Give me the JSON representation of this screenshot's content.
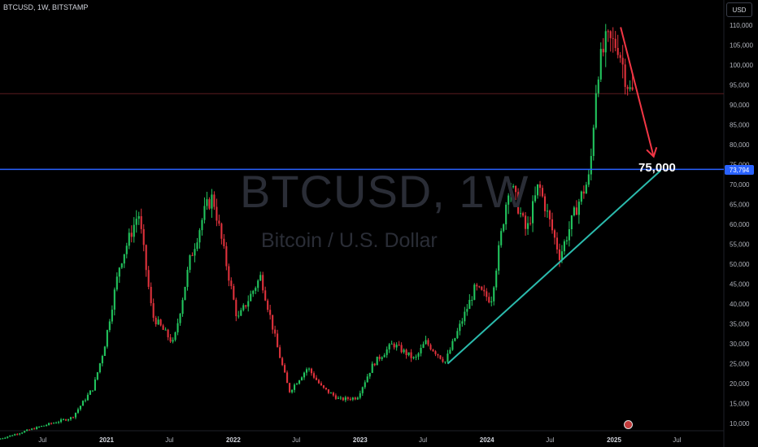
{
  "header": {
    "symbol_line": "BTCUSD, 1W, BITSTAMP"
  },
  "currency_button": "USD",
  "watermark": {
    "symbol": "BTCUSD, 1W",
    "description": "Bitcoin / U.S. Dollar"
  },
  "annotation": {
    "label": "75,000"
  },
  "price_tag": "73,794",
  "colors": {
    "up": "#26a69a",
    "down": "#ef5350",
    "candle_up": "#22c55e",
    "candle_down": "#e0323c",
    "horizontal_line": "#2962ff",
    "trend_line": "#2bbbad",
    "arrow": "#f23645",
    "background": "#000000"
  },
  "chart_data": {
    "type": "candlestick",
    "title": "BTCUSD, 1W",
    "ylim": [
      10000,
      110000
    ],
    "y_ticks": [
      10000,
      15000,
      20000,
      25000,
      30000,
      35000,
      40000,
      45000,
      50000,
      55000,
      60000,
      65000,
      70000,
      75000,
      80000,
      85000,
      90000,
      95000,
      100000,
      105000,
      110000
    ],
    "y_tick_labels": [
      "10,000",
      "15,000",
      "20,000",
      "25,000",
      "30,000",
      "35,000",
      "40,000",
      "45,000",
      "50,000",
      "55,000",
      "60,000",
      "65,000",
      "70,000",
      "75,000",
      "80,000",
      "85,000",
      "90,000",
      "95,000",
      "100,000",
      "105,000",
      "110,000"
    ],
    "x_ticks": [
      {
        "date": "2020-07-01",
        "label": "Jul",
        "bold": false
      },
      {
        "date": "2021-01-01",
        "label": "2021",
        "bold": true
      },
      {
        "date": "2021-07-01",
        "label": "Jul",
        "bold": false
      },
      {
        "date": "2022-01-01",
        "label": "2022",
        "bold": true
      },
      {
        "date": "2022-07-01",
        "label": "Jul",
        "bold": false
      },
      {
        "date": "2023-01-01",
        "label": "2023",
        "bold": true
      },
      {
        "date": "2023-07-01",
        "label": "Jul",
        "bold": false
      },
      {
        "date": "2024-01-01",
        "label": "2024",
        "bold": true
      },
      {
        "date": "2024-07-01",
        "label": "Jul",
        "bold": false
      },
      {
        "date": "2025-01-01",
        "label": "2025",
        "bold": true
      },
      {
        "date": "2025-07-01",
        "label": "Jul",
        "bold": false
      }
    ],
    "price_path": [
      [
        "2020-03-01",
        6000
      ],
      [
        "2020-07-01",
        9200
      ],
      [
        "2020-10-01",
        11500
      ],
      [
        "2020-12-01",
        19000
      ],
      [
        "2021-01-01",
        29000
      ],
      [
        "2021-02-15",
        50000
      ],
      [
        "2021-04-10",
        63000
      ],
      [
        "2021-05-20",
        37000
      ],
      [
        "2021-07-20",
        30000
      ],
      [
        "2021-09-05",
        51000
      ],
      [
        "2021-10-20",
        64000
      ],
      [
        "2021-11-10",
        67000
      ],
      [
        "2022-01-20",
        36000
      ],
      [
        "2022-03-28",
        47000
      ],
      [
        "2022-05-15",
        29000
      ],
      [
        "2022-06-18",
        18000
      ],
      [
        "2022-08-10",
        24000
      ],
      [
        "2022-09-20",
        19000
      ],
      [
        "2022-11-10",
        16000
      ],
      [
        "2022-12-30",
        16500
      ],
      [
        "2023-02-15",
        25000
      ],
      [
        "2023-04-12",
        30000
      ],
      [
        "2023-06-15",
        26000
      ],
      [
        "2023-07-15",
        30500
      ],
      [
        "2023-09-10",
        25500
      ],
      [
        "2023-10-20",
        34000
      ],
      [
        "2023-12-05",
        44000
      ],
      [
        "2024-01-20",
        41000
      ],
      [
        "2024-03-13",
        71000
      ],
      [
        "2024-05-01",
        58000
      ],
      [
        "2024-06-05",
        70000
      ],
      [
        "2024-08-05",
        52000
      ],
      [
        "2024-09-25",
        65000
      ],
      [
        "2024-10-30",
        72000
      ],
      [
        "2024-11-20",
        98000
      ],
      [
        "2024-12-17",
        106000
      ],
      [
        "2025-01-20",
        105000
      ],
      [
        "2025-02-10",
        97000
      ],
      [
        "2025-02-25",
        93000
      ]
    ],
    "levels": {
      "current_price": 92800,
      "support": 73794
    },
    "drawings": {
      "trendline": {
        "from": [
          "2023-09-10",
          25000
        ],
        "to": [
          "2025-05-15",
          73500
        ]
      },
      "arrow": {
        "from": [
          "2025-01-20",
          109500
        ],
        "to": [
          "2025-04-25",
          77000
        ]
      },
      "target_label": {
        "date": "2025-04-10",
        "value": 75000
      }
    }
  }
}
